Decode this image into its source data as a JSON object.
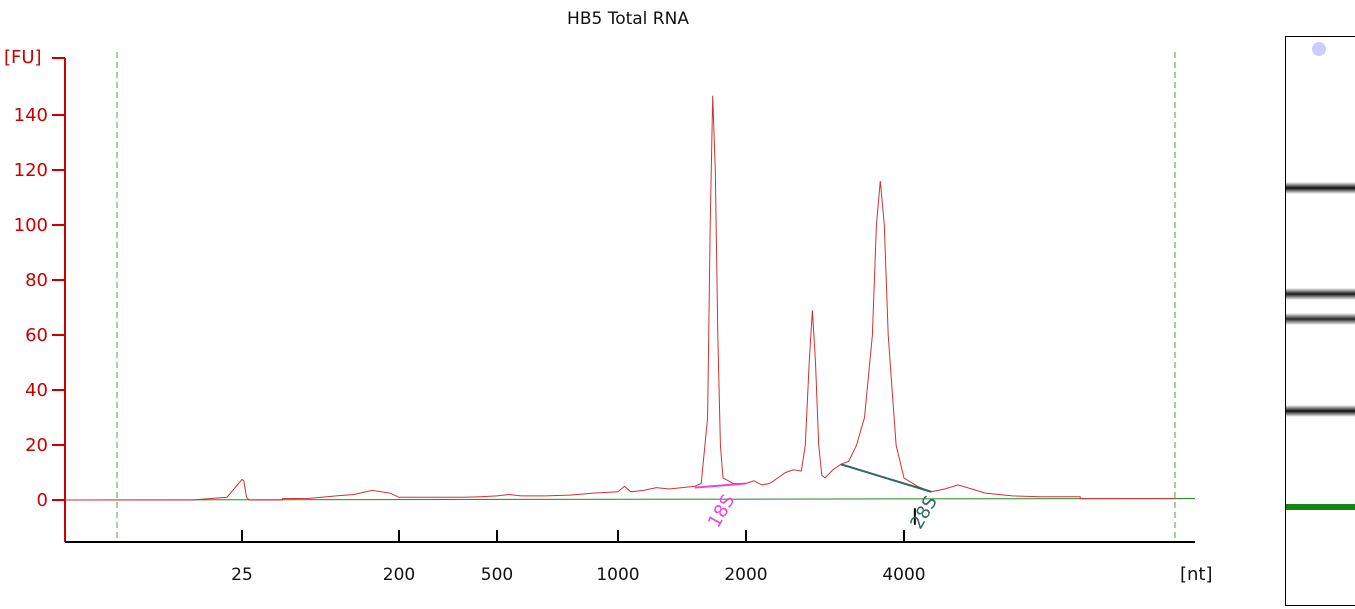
{
  "chart_data": {
    "type": "line",
    "title": "HB5 Total RNA",
    "ylabel": "[FU]",
    "xlabel": "[nt]",
    "ylim": [
      -15,
      155
    ],
    "yticks": [
      0,
      20,
      40,
      60,
      80,
      100,
      120,
      140
    ],
    "xticks": [
      "25",
      "200",
      "500",
      "1000",
      "2000",
      "4000"
    ],
    "x_scale": "electrophoresis ladder (non-linear)",
    "peak_markers": [
      {
        "label": "18S",
        "color": "#ee44dd"
      },
      {
        "label": "28S",
        "color": "#336666"
      }
    ],
    "series": [
      {
        "color": "#cc3333",
        "points": [
          [
            -60,
            0
          ],
          [
            0,
            0
          ],
          [
            15,
            0
          ],
          [
            22,
            1
          ],
          [
            25,
            7.5
          ],
          [
            27,
            7
          ],
          [
            30,
            1
          ],
          [
            33,
            0
          ],
          [
            70,
            0
          ],
          [
            70,
            0.5
          ],
          [
            100,
            0.6
          ],
          [
            130,
            1.5
          ],
          [
            150,
            2
          ],
          [
            170,
            3.5
          ],
          [
            190,
            2.5
          ],
          [
            200,
            1
          ],
          [
            300,
            1
          ],
          [
            400,
            1
          ],
          [
            450,
            1.2
          ],
          [
            500,
            1.5
          ],
          [
            550,
            2
          ],
          [
            600,
            1.5
          ],
          [
            700,
            1.5
          ],
          [
            800,
            1.8
          ],
          [
            900,
            2.5
          ],
          [
            1000,
            3
          ],
          [
            1050,
            5
          ],
          [
            1100,
            3
          ],
          [
            1200,
            3.5
          ],
          [
            1300,
            4.5
          ],
          [
            1400,
            4
          ],
          [
            1500,
            4.5
          ],
          [
            1600,
            5
          ],
          [
            1650,
            6
          ],
          [
            1700,
            30
          ],
          [
            1720,
            100
          ],
          [
            1740,
            147
          ],
          [
            1760,
            120
          ],
          [
            1780,
            60
          ],
          [
            1800,
            20
          ],
          [
            1820,
            8
          ],
          [
            1900,
            6
          ],
          [
            2000,
            6
          ],
          [
            2100,
            7
          ],
          [
            2200,
            5.5
          ],
          [
            2300,
            6
          ],
          [
            2400,
            8
          ],
          [
            2500,
            10
          ],
          [
            2600,
            11
          ],
          [
            2700,
            10.5
          ],
          [
            2750,
            20
          ],
          [
            2800,
            50
          ],
          [
            2840,
            69
          ],
          [
            2880,
            50
          ],
          [
            2920,
            20
          ],
          [
            2960,
            9
          ],
          [
            3000,
            8
          ],
          [
            3100,
            11
          ],
          [
            3200,
            13
          ],
          [
            3300,
            14
          ],
          [
            3400,
            20
          ],
          [
            3500,
            30
          ],
          [
            3600,
            60
          ],
          [
            3650,
            100
          ],
          [
            3700,
            116
          ],
          [
            3750,
            100
          ],
          [
            3800,
            60
          ],
          [
            3850,
            40
          ],
          [
            3900,
            20
          ],
          [
            4000,
            8
          ],
          [
            4100,
            5
          ],
          [
            4200,
            3
          ],
          [
            4300,
            4
          ],
          [
            4400,
            5.5
          ],
          [
            4500,
            4
          ],
          [
            4600,
            2.5
          ],
          [
            4800,
            1.5
          ],
          [
            5000,
            1.2
          ],
          [
            5300,
            1.2
          ],
          [
            5300,
            0.5
          ],
          [
            6000,
            0.5
          ]
        ]
      }
    ],
    "baseline": {
      "color": "#228822"
    },
    "gel_bands": [
      {
        "pos": 0.09,
        "darkness": 0.95
      },
      {
        "pos": 0.275,
        "darkness": 0.9
      },
      {
        "pos": 0.32,
        "darkness": 0.85
      },
      {
        "pos": 0.48,
        "darkness": 0.95
      },
      {
        "pos": 0.825,
        "darkness": 1.0
      }
    ]
  }
}
